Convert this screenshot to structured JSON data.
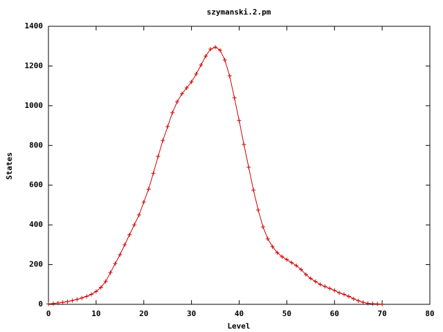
{
  "chart_data": {
    "type": "line",
    "title": "szymanski.2.pm",
    "xlabel": "Level",
    "ylabel": "States",
    "x": [
      0,
      1,
      2,
      3,
      4,
      5,
      6,
      7,
      8,
      9,
      10,
      11,
      12,
      13,
      14,
      15,
      16,
      17,
      18,
      19,
      20,
      21,
      22,
      23,
      24,
      25,
      26,
      27,
      28,
      29,
      30,
      31,
      32,
      33,
      34,
      35,
      36,
      37,
      38,
      39,
      40,
      41,
      42,
      43,
      44,
      45,
      46,
      47,
      48,
      49,
      50,
      51,
      52,
      53,
      54,
      55,
      56,
      57,
      58,
      59,
      60,
      61,
      62,
      63,
      64,
      65,
      66,
      67,
      68,
      69,
      70
    ],
    "series": [
      {
        "color": "#cc0000",
        "values": [
          2,
          4,
          7,
          10,
          14,
          19,
          25,
          32,
          40,
          50,
          65,
          85,
          115,
          160,
          205,
          250,
          300,
          350,
          400,
          450,
          515,
          580,
          660,
          745,
          825,
          895,
          965,
          1020,
          1060,
          1090,
          1120,
          1160,
          1205,
          1250,
          1285,
          1295,
          1280,
          1230,
          1150,
          1040,
          925,
          805,
          690,
          575,
          475,
          390,
          330,
          290,
          260,
          240,
          225,
          210,
          195,
          175,
          150,
          130,
          115,
          100,
          90,
          80,
          70,
          58,
          50,
          40,
          28,
          18,
          10,
          5,
          3,
          2,
          1
        ]
      }
    ],
    "xlim": [
      0,
      80
    ],
    "xticks": [
      0,
      10,
      20,
      30,
      40,
      50,
      60,
      70,
      80
    ],
    "ylim": [
      0,
      1400
    ],
    "yticks": [
      0,
      200,
      400,
      600,
      800,
      1000,
      1200,
      1400
    ]
  }
}
